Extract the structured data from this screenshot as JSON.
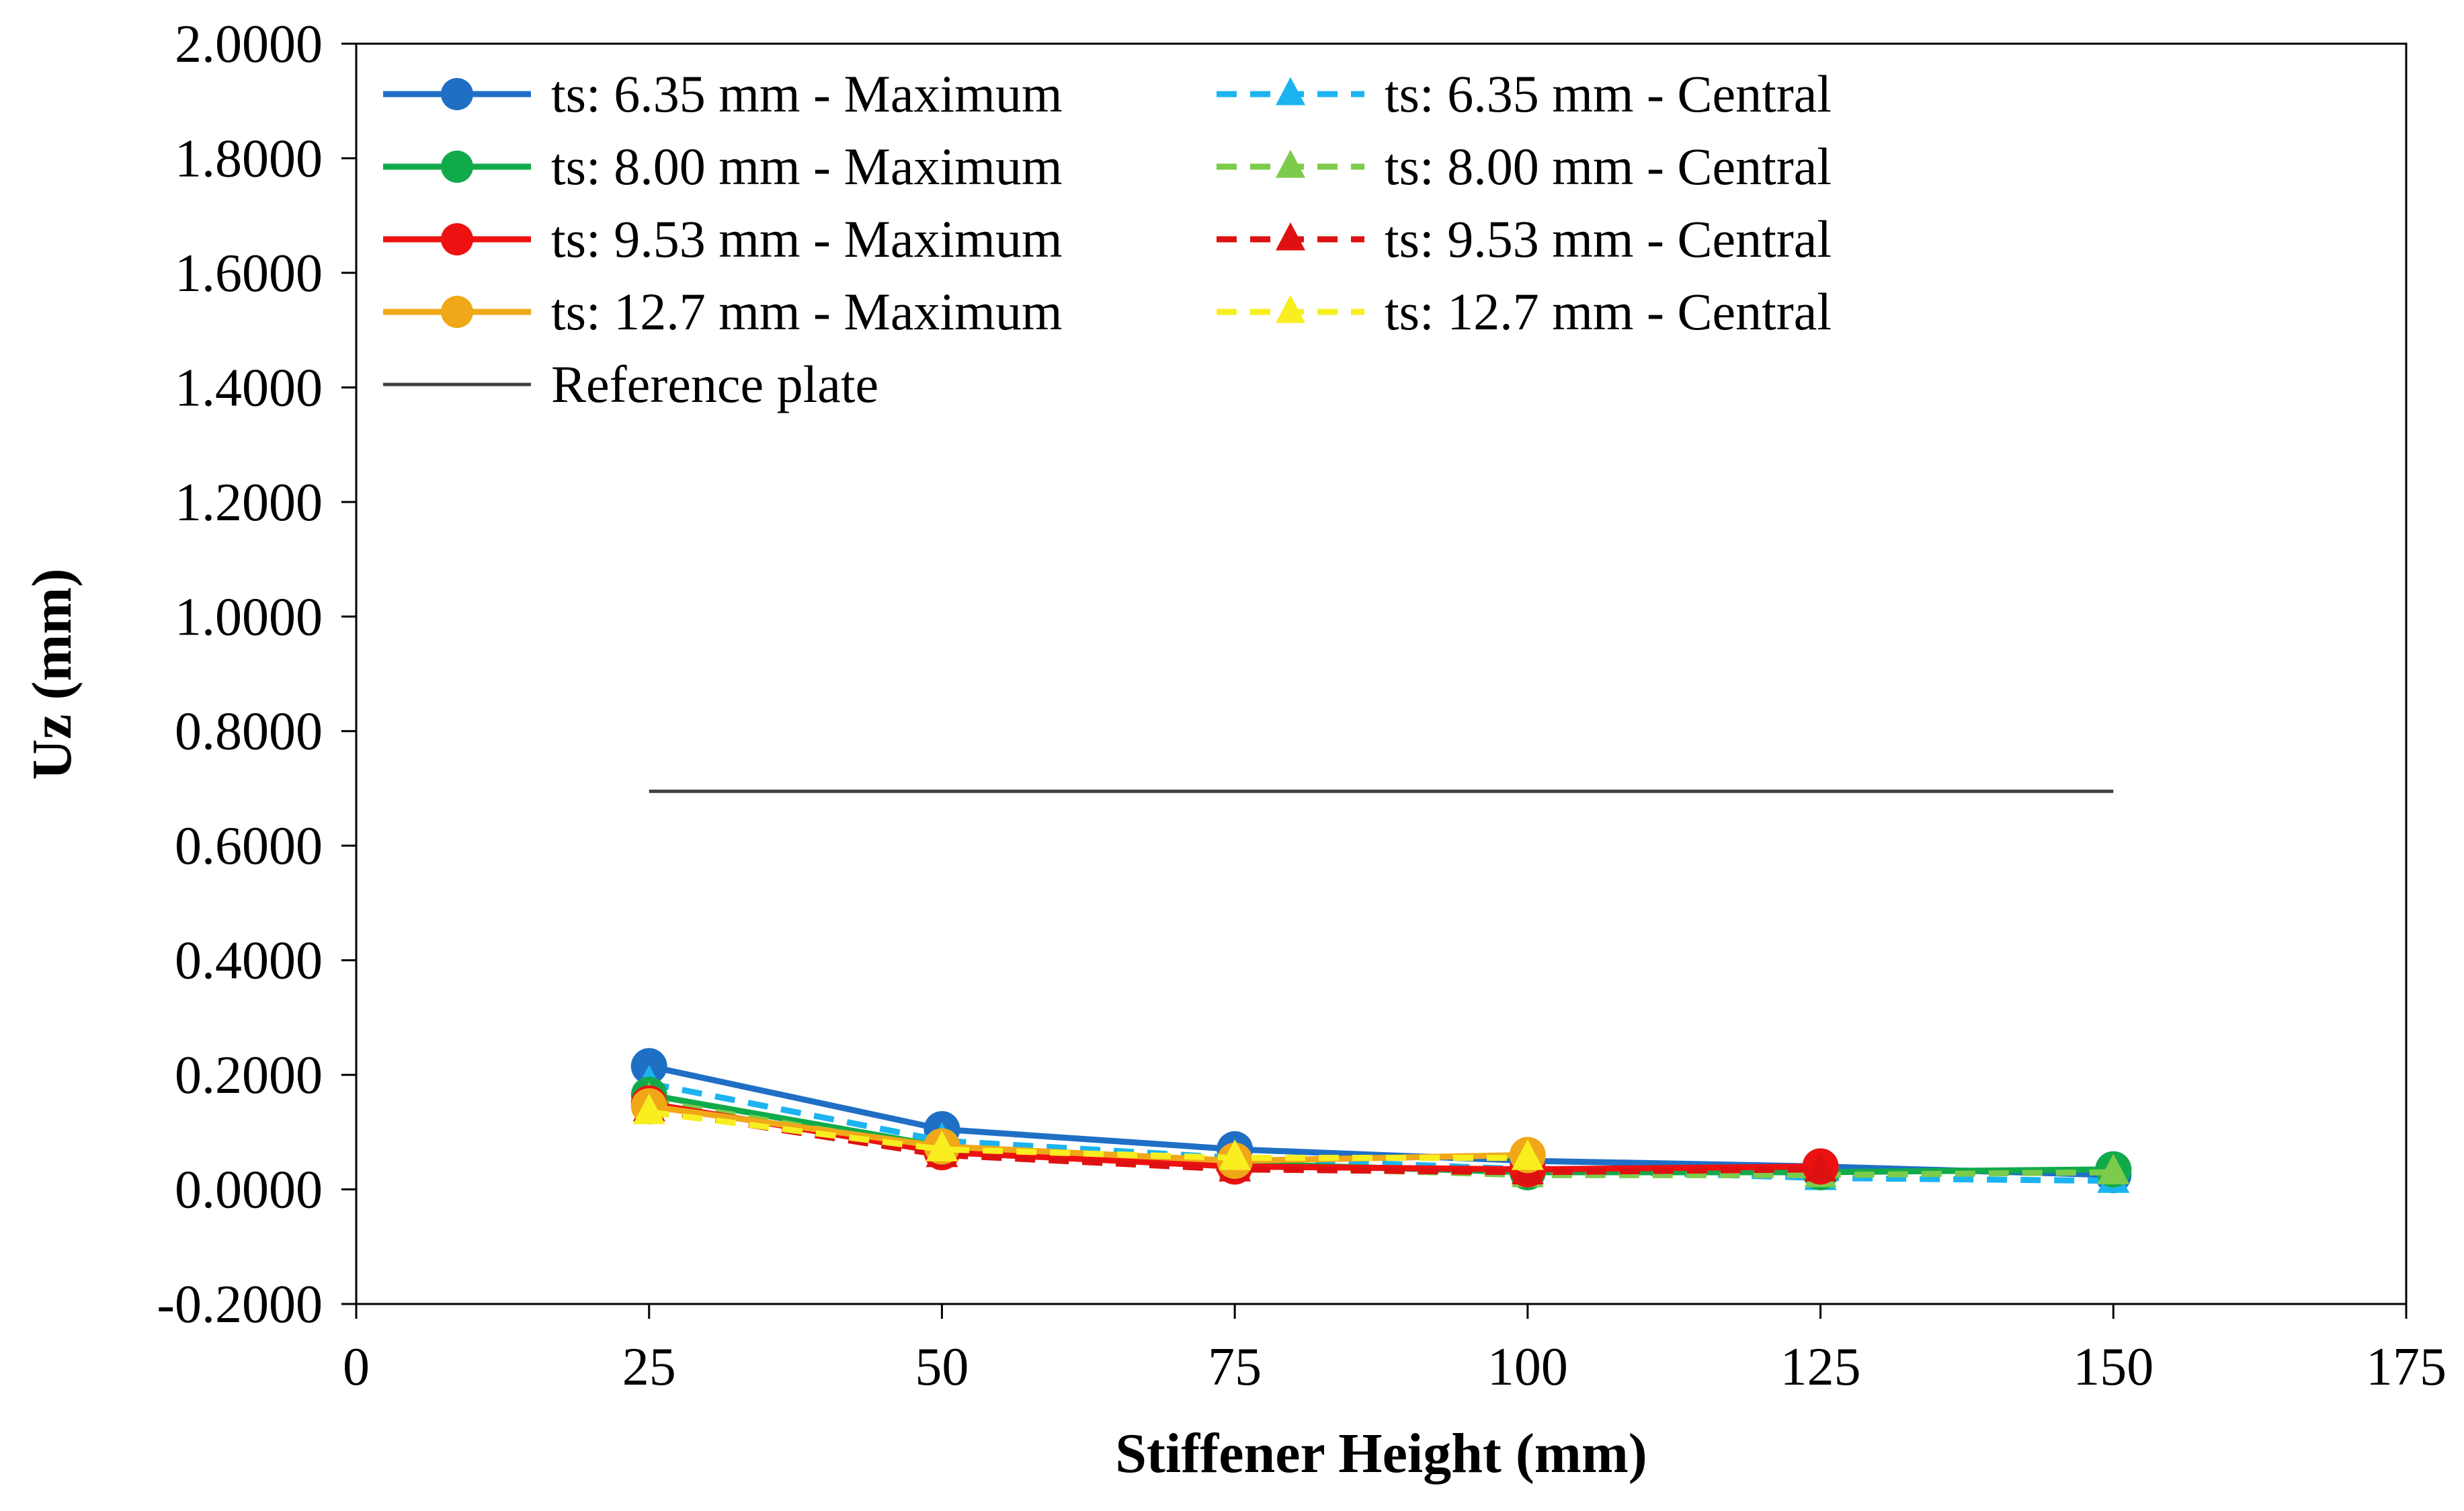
{
  "chart_data": {
    "type": "line",
    "title": "",
    "xlabel": "Stiffener Height (mm)",
    "ylabel": "Uz (mm)",
    "xlim": [
      0,
      175
    ],
    "ylim": [
      -0.2,
      2.0
    ],
    "xticks": [
      "0",
      "25",
      "50",
      "75",
      "100",
      "125",
      "150",
      "175"
    ],
    "yticks": [
      "-0.2000",
      "0.0000",
      "0.2000",
      "0.4000",
      "0.6000",
      "0.8000",
      "1.0000",
      "1.2000",
      "1.4000",
      "1.6000",
      "1.8000",
      "2.0000"
    ],
    "grid": false,
    "legend_position": "top-left",
    "series": [
      {
        "name": "ts: 6.35 mm - Maximum",
        "color": "#1F6FC5",
        "style": "solid",
        "marker": "circle",
        "x": [
          25,
          50,
          75,
          100,
          125,
          150
        ],
        "y": [
          0.215,
          0.105,
          0.07,
          0.05,
          0.04,
          0.025
        ]
      },
      {
        "name": "ts: 6.35 mm - Central",
        "color": "#1CB4F0",
        "style": "dashed",
        "marker": "triangle",
        "x": [
          25,
          50,
          75,
          100,
          125,
          150
        ],
        "y": [
          0.185,
          0.085,
          0.055,
          0.035,
          0.02,
          0.015
        ]
      },
      {
        "name": "ts: 8.00 mm - Maximum",
        "color": "#11AA4A",
        "style": "solid",
        "marker": "circle",
        "x": [
          25,
          50,
          75,
          100,
          125,
          150
        ],
        "y": [
          0.165,
          0.075,
          0.045,
          0.03,
          0.03,
          0.035
        ]
      },
      {
        "name": "ts: 8.00 mm - Central",
        "color": "#7DCB4A",
        "style": "dashed",
        "marker": "triangle",
        "x": [
          25,
          50,
          75,
          100,
          125,
          150
        ],
        "y": [
          0.155,
          0.07,
          0.04,
          0.025,
          0.025,
          0.03
        ]
      },
      {
        "name": "ts: 9.53 mm - Maximum",
        "color": "#EE1111",
        "style": "solid",
        "marker": "circle",
        "x": [
          25,
          50,
          75,
          100,
          125
        ],
        "y": [
          0.15,
          0.065,
          0.04,
          0.035,
          0.04
        ]
      },
      {
        "name": "ts: 9.53 mm - Central",
        "color": "#DD1111",
        "style": "dashed",
        "marker": "triangle",
        "x": [
          25,
          50,
          75,
          100,
          125
        ],
        "y": [
          0.14,
          0.06,
          0.035,
          0.03,
          0.035
        ]
      },
      {
        "name": "ts: 12.7 mm - Maximum",
        "color": "#F0A818",
        "style": "solid",
        "marker": "circle",
        "x": [
          25,
          50,
          75,
          100
        ],
        "y": [
          0.145,
          0.075,
          0.05,
          0.06
        ]
      },
      {
        "name": "ts: 12.7 mm - Central",
        "color": "#F8EE20",
        "style": "dashed",
        "marker": "triangle",
        "x": [
          25,
          50,
          75,
          100
        ],
        "y": [
          0.135,
          0.07,
          0.055,
          0.055
        ]
      },
      {
        "name": "Reference plate",
        "color": "#404040",
        "style": "solid",
        "marker": "none",
        "x": [
          25,
          150
        ],
        "y": [
          0.695,
          0.695
        ]
      }
    ]
  }
}
